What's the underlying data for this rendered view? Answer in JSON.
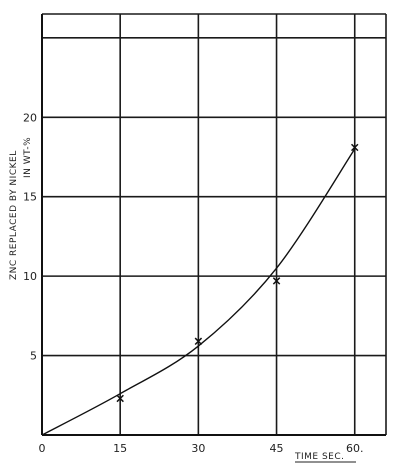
{
  "chart_data": {
    "type": "line",
    "xlabel": "TIME  SEC.",
    "ylabel_line1": "ZNC REPLACED BY NICKEL",
    "ylabel_line2": "IN WT-%",
    "x_ticks": [
      0,
      15,
      30,
      45,
      60
    ],
    "x_tick_labels": [
      "0",
      "15",
      "30",
      "45",
      "60."
    ],
    "y_ticks": [
      5,
      10,
      15,
      20
    ],
    "y_tick_labels": [
      "5",
      "10",
      "15",
      "20"
    ],
    "xlim": [
      0,
      60
    ],
    "ylim": [
      0,
      26.5
    ],
    "grid": true,
    "measured_points": {
      "x": [
        15,
        30,
        45,
        60
      ],
      "y": [
        2.3,
        5.9,
        9.7,
        18.1
      ]
    },
    "fitted_curve": {
      "x": [
        0,
        15,
        30,
        45,
        60
      ],
      "y": [
        0,
        2.6,
        5.6,
        10.5,
        18.0
      ]
    }
  }
}
